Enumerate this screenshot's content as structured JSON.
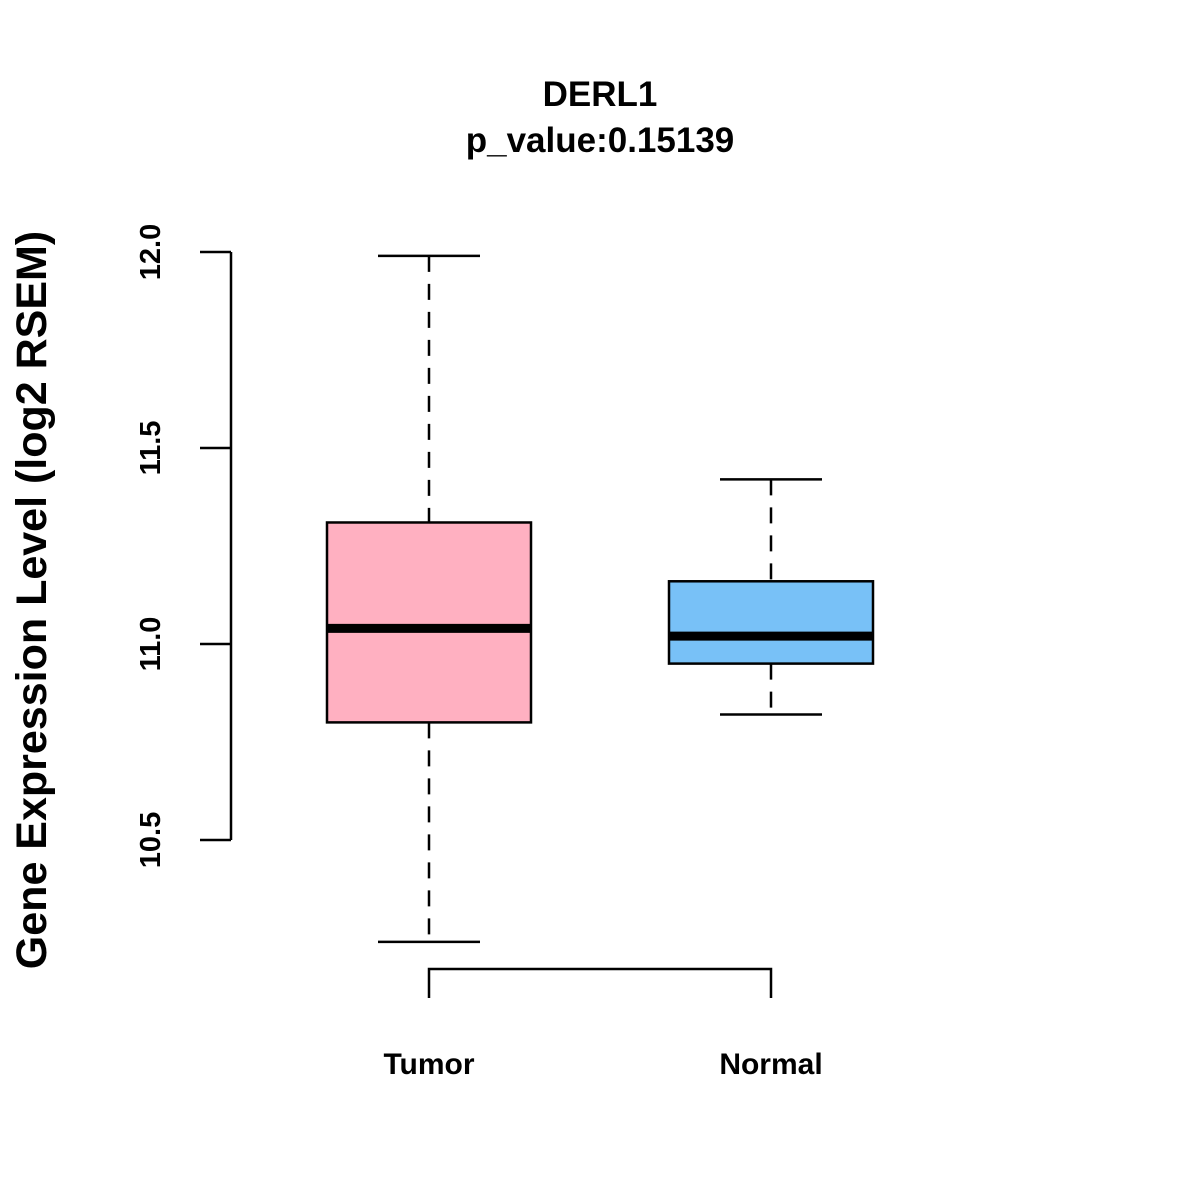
{
  "chart_data": {
    "type": "box",
    "title": "DERL1",
    "subtitle": "p_value:0.15139",
    "xlabel": "",
    "ylabel": "Gene Expression Level (log2 RSEM)",
    "ylim": [
      10.5,
      12.0
    ],
    "yticks": [
      10.5,
      11.0,
      11.5,
      12.0
    ],
    "ytick_labels": [
      "10.5",
      "11.0",
      "11.5",
      "12.0"
    ],
    "categories": [
      "Tumor",
      "Normal"
    ],
    "series": [
      {
        "name": "Tumor",
        "whisker_low": 10.24,
        "q1": 10.8,
        "median": 11.04,
        "q3": 11.31,
        "whisker_high": 11.99,
        "color": "#FFB0C1"
      },
      {
        "name": "Normal",
        "whisker_low": 10.82,
        "q1": 10.95,
        "median": 11.02,
        "q3": 11.16,
        "whisker_high": 11.42,
        "color": "#78C1F7"
      }
    ],
    "grid": false,
    "comparison_bracket": true
  }
}
